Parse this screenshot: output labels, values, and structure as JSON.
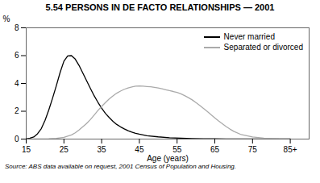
{
  "chart_data": {
    "type": "line",
    "title": "5.54   PERSONS IN DE FACTO RELATIONSHIPS — 2001",
    "xlabel": "Age (years)",
    "ylabel": "%",
    "source": "Source: ABS data available on request, 2001 Census of Population and Housing.",
    "xlim": [
      15,
      90
    ],
    "ylim": [
      0,
      8
    ],
    "xticks": [
      15,
      25,
      35,
      45,
      55,
      65,
      75,
      {
        "value": 85,
        "label": "85+"
      }
    ],
    "yticks": [
      0,
      2,
      4,
      6,
      8
    ],
    "legend": "upper right",
    "grid": false,
    "series": [
      {
        "name": "Never married",
        "color": "#000000",
        "x": [
          15,
          16,
          17,
          18,
          19,
          20,
          21,
          22,
          23,
          24,
          25,
          26,
          27,
          28,
          29,
          30,
          31,
          32,
          33,
          34,
          35,
          36,
          37,
          38,
          39,
          40,
          41,
          42,
          43,
          44,
          45,
          47,
          50,
          53,
          56,
          59,
          62,
          65,
          68,
          72,
          78,
          85
        ],
        "values": [
          0.02,
          0.06,
          0.15,
          0.38,
          0.75,
          1.35,
          2.1,
          2.95,
          3.85,
          4.8,
          5.6,
          5.98,
          6.0,
          5.75,
          5.3,
          4.75,
          4.2,
          3.65,
          3.12,
          2.65,
          2.22,
          1.85,
          1.55,
          1.28,
          1.05,
          0.88,
          0.73,
          0.6,
          0.5,
          0.42,
          0.35,
          0.24,
          0.16,
          0.1,
          0.065,
          0.04,
          0.025,
          0.015,
          0.009,
          0.005,
          0.002,
          0.001
        ]
      },
      {
        "name": "Separated or divorced",
        "color": "#aaaaaa",
        "x": [
          15,
          17,
          19,
          21,
          23,
          25,
          27,
          28,
          29,
          30,
          31,
          32,
          33,
          34,
          35,
          36,
          37,
          38,
          39,
          40,
          41,
          42,
          43,
          44,
          45,
          46,
          47,
          48,
          49,
          50,
          51,
          52,
          53,
          54,
          55,
          56,
          57,
          58,
          59,
          60,
          61,
          62,
          63,
          64,
          65,
          66,
          67,
          68,
          69,
          70,
          72,
          75,
          78,
          82,
          85
        ],
        "values": [
          0.0,
          0.005,
          0.01,
          0.02,
          0.05,
          0.12,
          0.3,
          0.45,
          0.65,
          0.88,
          1.12,
          1.4,
          1.72,
          2.05,
          2.35,
          2.62,
          2.88,
          3.1,
          3.3,
          3.45,
          3.58,
          3.68,
          3.75,
          3.8,
          3.82,
          3.8,
          3.78,
          3.76,
          3.72,
          3.68,
          3.62,
          3.55,
          3.48,
          3.42,
          3.35,
          3.25,
          3.12,
          2.98,
          2.82,
          2.62,
          2.42,
          2.2,
          1.98,
          1.75,
          1.52,
          1.3,
          1.1,
          0.9,
          0.72,
          0.56,
          0.32,
          0.15,
          0.07,
          0.02,
          0.005
        ]
      }
    ]
  }
}
